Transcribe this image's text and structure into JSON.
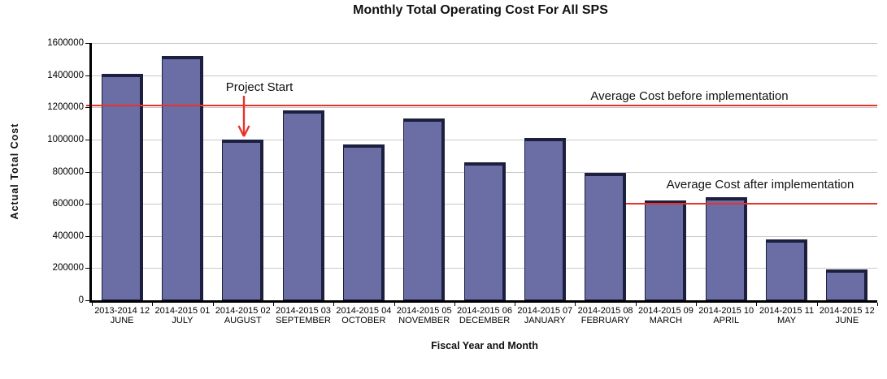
{
  "chart_data": {
    "type": "bar",
    "title": "Monthly Total Operating Cost For All SPS",
    "xlabel": "Fiscal Year and Month",
    "ylabel": "Actual Total Cost",
    "ylim": [
      0,
      1600000
    ],
    "ytick_step": 200000,
    "grid": true,
    "bar_color": "#6a6ea4",
    "bar_edge_color": "#1c1f3e",
    "categories": [
      {
        "line1": "2013-2014 12",
        "line2": "JUNE"
      },
      {
        "line1": "2014-2015 01",
        "line2": "JULY"
      },
      {
        "line1": "2014-2015 02",
        "line2": "AUGUST"
      },
      {
        "line1": "2014-2015 03",
        "line2": "SEPTEMBER"
      },
      {
        "line1": "2014-2015 04",
        "line2": "OCTOBER"
      },
      {
        "line1": "2014-2015 05",
        "line2": "NOVEMBER"
      },
      {
        "line1": "2014-2015 06",
        "line2": "DECEMBER"
      },
      {
        "line1": "2014-2015 07",
        "line2": "JANUARY"
      },
      {
        "line1": "2014-2015 08",
        "line2": "FEBRUARY"
      },
      {
        "line1": "2014-2015 09",
        "line2": "MARCH"
      },
      {
        "line1": "2014-2015 10",
        "line2": "APRIL"
      },
      {
        "line1": "2014-2015 11",
        "line2": "MAY"
      },
      {
        "line1": "2014-2015 12",
        "line2": "JUNE"
      }
    ],
    "values": [
      1410000,
      1520000,
      1000000,
      1180000,
      970000,
      1130000,
      860000,
      1010000,
      790000,
      620000,
      640000,
      380000,
      190000
    ],
    "reference_lines": [
      {
        "label": "Average Cost before implementation",
        "value": 1210000,
        "color": "#e8322a"
      },
      {
        "label": "Average Cost after implementation",
        "value": 600000,
        "color": "#e8322a"
      }
    ],
    "annotations": [
      {
        "label": "Project Start",
        "target_category_index": 2,
        "arrow_color": "#e8322a"
      }
    ]
  }
}
